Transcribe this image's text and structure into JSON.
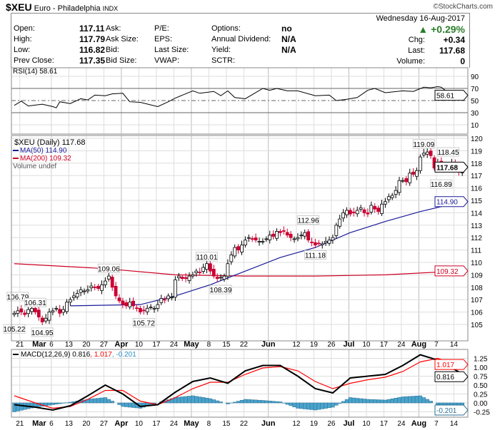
{
  "header": {
    "symbol": "$XEU",
    "name": "Euro - Philadelphia",
    "exchange": "INDX",
    "copyright": "©StockCharts.com"
  },
  "quote": {
    "date": "Wednesday  16-Aug-2017",
    "pct_change": "▲ +0.29%",
    "chg_label": "Chg:",
    "chg": "+0.34",
    "last_label": "Last:",
    "last": "117.68",
    "volume_label": "Volume:",
    "volume": "0",
    "rows": [
      {
        "l1": "Open:",
        "v1": "117.11",
        "l2": "Ask:",
        "l3": "P/E:",
        "l4": "Options:",
        "v4": "no"
      },
      {
        "l1": "High:",
        "v1": "117.79",
        "l2": "Ask Size:",
        "l3": "EPS:",
        "l4": "Annual Dividend:",
        "v4": "N/A"
      },
      {
        "l1": "Low:",
        "v1": "116.82",
        "l2": "Bid:",
        "l3": "Last Size:",
        "l4": "Yield:",
        "v4": "N/A"
      },
      {
        "l1": "Prev Close:",
        "v1": "117.35",
        "l2": "Bid Size:",
        "l3": "VWAP:",
        "l4": "SCTR:",
        "v4": ""
      }
    ]
  },
  "colors": {
    "up": "#000000",
    "down": "#cc0033",
    "ma50": "#1a1a99",
    "ma200": "#cc0022",
    "macd": "#000000",
    "signal": "#ff0000",
    "hist": "#4aa3cc",
    "grid": "#dddddd"
  },
  "rsi": {
    "label": "RSI(14) 58.61",
    "value": "58.61",
    "ticks": [
      "90",
      "70",
      "50",
      "30",
      "10"
    ],
    "points": [
      [
        0,
        42
      ],
      [
        2,
        49
      ],
      [
        4,
        41
      ],
      [
        8,
        44
      ],
      [
        11,
        40
      ],
      [
        12,
        38
      ],
      [
        13,
        48
      ],
      [
        16,
        45
      ],
      [
        19,
        53
      ],
      [
        21,
        51
      ],
      [
        23,
        59
      ],
      [
        26,
        58
      ],
      [
        28,
        61
      ],
      [
        31,
        62
      ],
      [
        33,
        48
      ],
      [
        36,
        47
      ],
      [
        41,
        40
      ],
      [
        44,
        48
      ],
      [
        46,
        54
      ],
      [
        51,
        66
      ],
      [
        53,
        62
      ],
      [
        57,
        65
      ],
      [
        59,
        58
      ],
      [
        61,
        66
      ],
      [
        63,
        55
      ],
      [
        66,
        53
      ],
      [
        71,
        70
      ],
      [
        73,
        67
      ],
      [
        75,
        70
      ],
      [
        78,
        66
      ],
      [
        81,
        66
      ],
      [
        86,
        58
      ],
      [
        90,
        59
      ],
      [
        92,
        50
      ],
      [
        95,
        52
      ],
      [
        98,
        55
      ],
      [
        101,
        67
      ],
      [
        103,
        70
      ],
      [
        106,
        63
      ],
      [
        111,
        66
      ],
      [
        114,
        65
      ],
      [
        117,
        72
      ],
      [
        119,
        71
      ],
      [
        121,
        73
      ],
      [
        122,
        72
      ],
      [
        124,
        63
      ],
      [
        126,
        59
      ],
      [
        127,
        56
      ],
      [
        128,
        58.61
      ]
    ]
  },
  "chart_data": {
    "type": "candlestick",
    "title": "$XEU (Daily) 117.68",
    "legend": {
      "ma50": "MA(50) 114.90",
      "ma200": "MA(200) 109.32",
      "volume": "Volume undef"
    },
    "last_tag": "117.68",
    "ma50_tag": "114.90",
    "ma200_tag": "109.32",
    "ylim": [
      104.3,
      120.5
    ],
    "yticks": [
      "120",
      "119",
      "118",
      "117",
      "116",
      "115",
      "114",
      "113",
      "112",
      "111",
      "110",
      "109",
      "108",
      "107",
      "106",
      "105"
    ],
    "closes": [
      105.9,
      106.1,
      106.0,
      105.8,
      106.2,
      106.3,
      106.0,
      105.6,
      105.2,
      105.5,
      106.0,
      106.1,
      106.3,
      105.9,
      106.2,
      106.8,
      107.0,
      107.3,
      107.5,
      107.8,
      107.7,
      107.8,
      108.1,
      108.0,
      107.9,
      108.2,
      108.5,
      108.9,
      108.0,
      107.3,
      106.9,
      106.6,
      106.5,
      106.8,
      106.5,
      106.3,
      106.0,
      106.1,
      106.3,
      106.4,
      106.3,
      106.6,
      107.1,
      107.0,
      107.3,
      107.2,
      108.6,
      108.9,
      108.7,
      108.7,
      108.9,
      109.0,
      109.3,
      109.2,
      109.6,
      109.9,
      109.3,
      108.9,
      108.7,
      108.8,
      108.9,
      109.9,
      110.6,
      111.2,
      111.0,
      111.4,
      111.8,
      112.0,
      111.9,
      111.8,
      111.7,
      111.7,
      111.9,
      112.2,
      112.1,
      112.5,
      112.4,
      112.5,
      112.2,
      112.0,
      111.9,
      112.0,
      112.2,
      112.4,
      111.8,
      111.6,
      111.4,
      111.5,
      111.5,
      111.7,
      111.8,
      112.0,
      113.0,
      113.5,
      114.0,
      114.2,
      113.9,
      114.0,
      114.2,
      114.4,
      114.0,
      113.9,
      114.6,
      114.3,
      114.1,
      114.7,
      114.9,
      115.3,
      115.4,
      115.8,
      116.6,
      116.6,
      116.5,
      117.2,
      117.1,
      117.4,
      118.5,
      118.8,
      118.9,
      118.6,
      117.6,
      118.0,
      117.8,
      117.6,
      117.8,
      118.0,
      117.6,
      117.3,
      117.68
    ],
    "ma50": [
      [
        16,
        106.5
      ],
      [
        36,
        106.6
      ],
      [
        46,
        107.3
      ],
      [
        56,
        108.2
      ],
      [
        66,
        109.3
      ],
      [
        76,
        110.4
      ],
      [
        86,
        111.2
      ],
      [
        96,
        112.4
      ],
      [
        106,
        113.3
      ],
      [
        116,
        114.1
      ],
      [
        128,
        114.9
      ]
    ],
    "ma200": [
      [
        0,
        109.9
      ],
      [
        26,
        109.5
      ],
      [
        46,
        109.0
      ],
      [
        66,
        108.9
      ],
      [
        86,
        108.9
      ],
      [
        106,
        109.0
      ],
      [
        128,
        109.32
      ]
    ],
    "annotations": [
      [
        0,
        105.22,
        "below"
      ],
      [
        1,
        106.79,
        "above"
      ],
      [
        6,
        106.31,
        "above"
      ],
      [
        8,
        104.95,
        "below"
      ],
      [
        27,
        109.06,
        "above"
      ],
      [
        37,
        105.72,
        "below"
      ],
      [
        55,
        110.01,
        "above"
      ],
      [
        59,
        108.39,
        "below"
      ],
      [
        84,
        112.96,
        "above"
      ],
      [
        86,
        111.18,
        "below"
      ],
      [
        117,
        119.09,
        "above"
      ],
      [
        124,
        118.45,
        "above"
      ],
      [
        122,
        116.89,
        "below"
      ]
    ]
  },
  "macd": {
    "label": "MACD(12,26,9) 0.816",
    "signal_label": ", 1.017",
    "hist_label": ", -0.201",
    "tags": {
      "macd": "0.816",
      "signal": "1.017",
      "hist": "-0.201"
    },
    "ticks": [
      "1.25",
      "1.00",
      "0.75",
      "0.50",
      "0.25",
      "0.00",
      "-0.25"
    ],
    "macd_points": [
      [
        0,
        -0.05
      ],
      [
        6,
        -0.12
      ],
      [
        11,
        -0.2
      ],
      [
        16,
        -0.08
      ],
      [
        21,
        0.2
      ],
      [
        26,
        0.5
      ],
      [
        31,
        0.25
      ],
      [
        36,
        -0.1
      ],
      [
        41,
        -0.05
      ],
      [
        46,
        0.3
      ],
      [
        51,
        0.6
      ],
      [
        56,
        0.7
      ],
      [
        61,
        0.55
      ],
      [
        66,
        0.9
      ],
      [
        71,
        1.05
      ],
      [
        76,
        1.05
      ],
      [
        81,
        0.75
      ],
      [
        86,
        0.4
      ],
      [
        91,
        0.28
      ],
      [
        96,
        0.7
      ],
      [
        101,
        0.75
      ],
      [
        106,
        0.8
      ],
      [
        111,
        1.05
      ],
      [
        116,
        1.35
      ],
      [
        121,
        1.2
      ],
      [
        128,
        0.816
      ]
    ],
    "signal_points": [
      [
        0,
        0.2
      ],
      [
        6,
        0.0
      ],
      [
        11,
        -0.15
      ],
      [
        16,
        -0.1
      ],
      [
        21,
        0.1
      ],
      [
        26,
        0.35
      ],
      [
        31,
        0.35
      ],
      [
        36,
        0.05
      ],
      [
        41,
        -0.05
      ],
      [
        46,
        0.15
      ],
      [
        51,
        0.4
      ],
      [
        56,
        0.58
      ],
      [
        61,
        0.58
      ],
      [
        66,
        0.8
      ],
      [
        71,
        0.98
      ],
      [
        76,
        1.02
      ],
      [
        81,
        0.9
      ],
      [
        86,
        0.6
      ],
      [
        91,
        0.4
      ],
      [
        96,
        0.55
      ],
      [
        101,
        0.65
      ],
      [
        106,
        0.72
      ],
      [
        111,
        0.88
      ],
      [
        116,
        1.15
      ],
      [
        121,
        1.25
      ],
      [
        128,
        1.017
      ]
    ]
  },
  "xaxis": {
    "labels": [
      [
        2,
        "21"
      ],
      [
        11,
        "Mar"
      ],
      [
        11,
        "6"
      ],
      [
        16,
        "13"
      ],
      [
        21,
        "20"
      ],
      [
        26,
        "27"
      ],
      [
        31,
        "Apr"
      ],
      [
        36,
        "10"
      ],
      [
        41,
        "17"
      ],
      [
        46,
        "24"
      ],
      [
        51,
        "May"
      ],
      [
        56,
        "8"
      ],
      [
        61,
        "15"
      ],
      [
        66,
        "22"
      ],
      [
        73,
        "Jun"
      ],
      [
        81,
        "12"
      ],
      [
        86,
        "19"
      ],
      [
        91,
        "26"
      ],
      [
        96,
        "Jul"
      ],
      [
        101,
        "10"
      ],
      [
        106,
        "17"
      ],
      [
        111,
        "24"
      ],
      [
        116,
        "Aug"
      ],
      [
        121,
        "7"
      ],
      [
        126,
        "14"
      ]
    ]
  }
}
